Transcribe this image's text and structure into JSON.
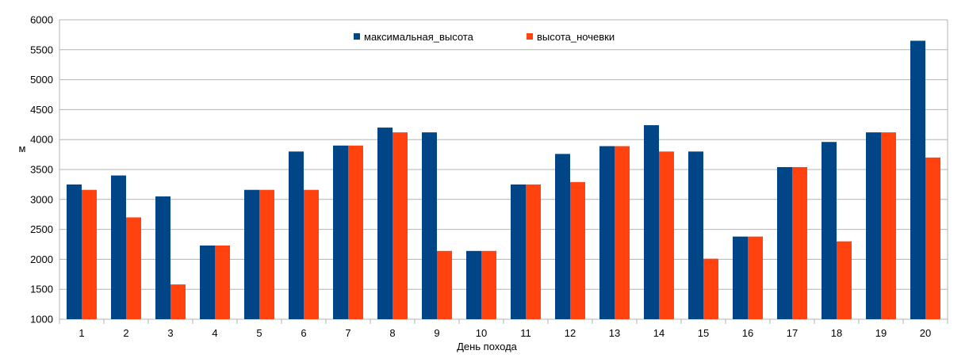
{
  "chart_data": {
    "type": "bar",
    "title": "",
    "xlabel": "День похода",
    "ylabel": "м",
    "ylim": [
      1000,
      6000
    ],
    "yticks": [
      1000,
      1500,
      2000,
      2500,
      3000,
      3500,
      4000,
      4500,
      5000,
      5500,
      6000
    ],
    "grid": true,
    "legend_position": "top-center",
    "categories": [
      "1",
      "2",
      "3",
      "4",
      "5",
      "6",
      "7",
      "8",
      "9",
      "10",
      "11",
      "12",
      "13",
      "14",
      "15",
      "16",
      "17",
      "18",
      "19",
      "20"
    ],
    "series": [
      {
        "name": "максимальная_высота",
        "color": "#004586",
        "values": [
          3250,
          3400,
          3050,
          2230,
          3160,
          3800,
          3900,
          4200,
          4120,
          2140,
          3250,
          3760,
          3890,
          4240,
          3800,
          2380,
          3540,
          3960,
          4120,
          5650
        ]
      },
      {
        "name": "высота_ночевки",
        "color": "#ff420e",
        "values": [
          3160,
          2700,
          1580,
          2230,
          3160,
          3160,
          3900,
          4120,
          2140,
          2140,
          3250,
          3290,
          3890,
          3800,
          2010,
          2380,
          3540,
          2300,
          4120,
          3700
        ]
      }
    ]
  }
}
